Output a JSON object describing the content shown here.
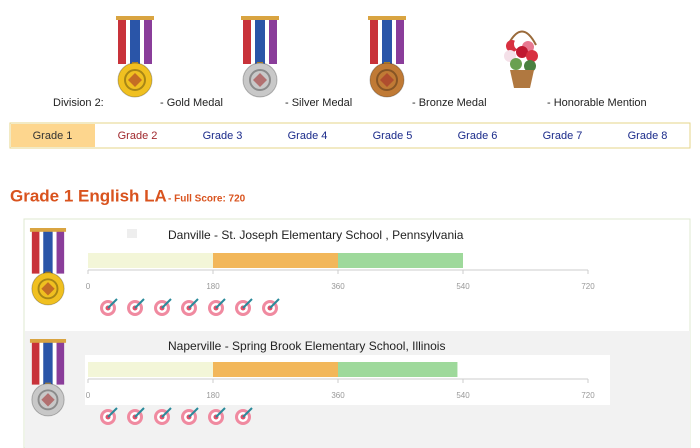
{
  "legend": {
    "label": "Division 2:",
    "items": [
      "- Gold Medal",
      "- Silver Medal",
      "- Bronze Medal",
      "- Honorable Mention"
    ]
  },
  "tabs": [
    "Grade 1",
    "Grade 2",
    "Grade 3",
    "Grade 4",
    "Grade 5",
    "Grade 6",
    "Grade 7",
    "Grade 8"
  ],
  "active_tab": 0,
  "section": {
    "title": "Grade 1 English LA",
    "subtitle": "- Full Score: 720"
  },
  "axis": {
    "lim": [
      0,
      720
    ],
    "ticks": [
      0,
      180,
      360,
      540,
      720
    ]
  },
  "segment_colors": [
    "#f3f6d8",
    "#f2b75a",
    "#9ed99b"
  ],
  "entries": [
    {
      "school": "Danville - St. Joseph Elementary School , Pennsylvania",
      "segments": [
        180,
        180,
        180
      ],
      "targets": 7,
      "medal_color": "#f0c020"
    },
    {
      "school": "Naperville - Spring Brook Elementary School, Illinois",
      "segments": [
        180,
        180,
        172
      ],
      "targets": 6,
      "medal_color": "#c8c8c8"
    }
  ]
}
